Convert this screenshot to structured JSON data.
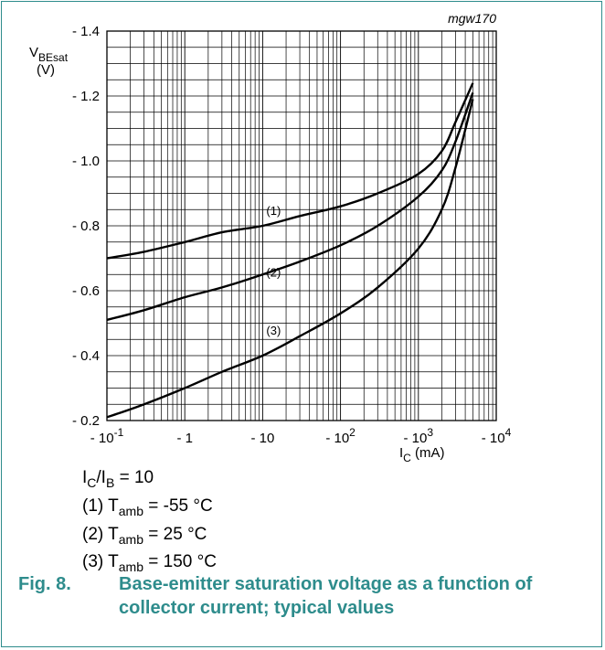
{
  "figure_code": "mgw170",
  "y_axis": {
    "symbol": "V",
    "subscript": "BEsat",
    "unit": "(V)"
  },
  "x_axis": {
    "symbol": "I",
    "subscript": "C",
    "unit": "(mA)"
  },
  "conditions": {
    "ratio": {
      "a": "I",
      "a_sub": "C",
      "sep": "/I",
      "b_sub": "B",
      "rest": " = 10"
    },
    "curves": [
      {
        "label": "(1) T",
        "sub": "amb",
        "value": " = -55 °C"
      },
      {
        "label": "(2) T",
        "sub": "amb",
        "value": " = 25 °C"
      },
      {
        "label": "(3) T",
        "sub": "amb",
        "value": " = 150 °C"
      }
    ]
  },
  "caption": {
    "number": "Fig. 8.",
    "text": "Base-emitter saturation voltage as a function of collector current; typical values"
  },
  "chart_data": {
    "type": "line",
    "x_scale": "log",
    "xlim": [
      0.1,
      10000
    ],
    "ylim": [
      -0.2,
      -1.4
    ],
    "grid": true,
    "y_ticks": [
      {
        "value": -1.4,
        "label": "- 1.4"
      },
      {
        "value": -1.2,
        "label": "- 1.2"
      },
      {
        "value": -1.0,
        "label": "- 1.0"
      },
      {
        "value": -0.8,
        "label": "- 0.8"
      },
      {
        "value": -0.6,
        "label": "- 0.6"
      },
      {
        "value": -0.4,
        "label": "- 0.4"
      },
      {
        "value": -0.2,
        "label": "- 0.2"
      }
    ],
    "x_ticks": [
      {
        "value": 0.1,
        "base": "- 10",
        "exp": "-1"
      },
      {
        "value": 1,
        "base": "- 1",
        "exp": ""
      },
      {
        "value": 10,
        "base": "- 10",
        "exp": ""
      },
      {
        "value": 100,
        "base": "- 10",
        "exp": "2"
      },
      {
        "value": 1000,
        "base": "- 10",
        "exp": "3"
      },
      {
        "value": 10000,
        "base": "- 10",
        "exp": "4"
      }
    ],
    "series": [
      {
        "name": "(1)",
        "label_at": [
          10,
          -0.84
        ],
        "x": [
          0.1,
          0.3,
          1,
          3,
          10,
          30,
          100,
          300,
          1000,
          2000,
          3000,
          5000
        ],
        "y": [
          -0.7,
          -0.72,
          -0.75,
          -0.78,
          -0.8,
          -0.83,
          -0.86,
          -0.9,
          -0.96,
          -1.03,
          -1.12,
          -1.24
        ]
      },
      {
        "name": "(2)",
        "label_at": [
          10,
          -0.65
        ],
        "x": [
          0.1,
          0.3,
          1,
          3,
          10,
          30,
          100,
          300,
          1000,
          2000,
          3000,
          5000
        ],
        "y": [
          -0.51,
          -0.54,
          -0.58,
          -0.61,
          -0.65,
          -0.69,
          -0.74,
          -0.8,
          -0.89,
          -0.97,
          -1.06,
          -1.21
        ]
      },
      {
        "name": "(3)",
        "label_at": [
          10,
          -0.47
        ],
        "x": [
          0.1,
          0.3,
          1,
          3,
          10,
          30,
          100,
          300,
          1000,
          2000,
          3000,
          5000
        ],
        "y": [
          -0.21,
          -0.25,
          -0.3,
          -0.35,
          -0.4,
          -0.46,
          -0.53,
          -0.61,
          -0.73,
          -0.85,
          -0.98,
          -1.19
        ]
      }
    ]
  }
}
